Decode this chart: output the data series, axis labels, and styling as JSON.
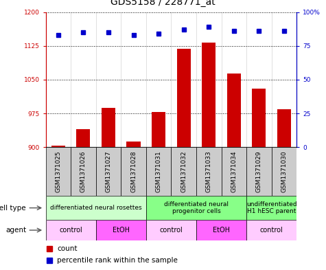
{
  "title": "GDS5158 / 228771_at",
  "samples": [
    "GSM1371025",
    "GSM1371026",
    "GSM1371027",
    "GSM1371028",
    "GSM1371031",
    "GSM1371032",
    "GSM1371033",
    "GSM1371034",
    "GSM1371029",
    "GSM1371030"
  ],
  "counts": [
    903,
    940,
    988,
    912,
    978,
    1118,
    1133,
    1063,
    1030,
    985
  ],
  "percentiles": [
    83,
    85,
    85,
    83,
    84,
    87,
    89,
    86,
    86,
    86
  ],
  "ylim_left": [
    900,
    1200
  ],
  "ylim_right": [
    0,
    100
  ],
  "yticks_left": [
    900,
    975,
    1050,
    1125,
    1200
  ],
  "yticks_right": [
    0,
    25,
    50,
    75,
    100
  ],
  "bar_color": "#cc0000",
  "dot_color": "#0000cc",
  "cell_type_groups": [
    {
      "label": "differentiated neural rosettes",
      "start": 0,
      "end": 4,
      "color": "#ccffcc"
    },
    {
      "label": "differentiated neural\nprogenitor cells",
      "start": 4,
      "end": 8,
      "color": "#88ff88"
    },
    {
      "label": "undifferentiated\nH1 hESC parent",
      "start": 8,
      "end": 10,
      "color": "#88ff88"
    }
  ],
  "agent_groups": [
    {
      "label": "control",
      "start": 0,
      "end": 2,
      "color": "#ffccff"
    },
    {
      "label": "EtOH",
      "start": 2,
      "end": 4,
      "color": "#ff66ff"
    },
    {
      "label": "control",
      "start": 4,
      "end": 6,
      "color": "#ffccff"
    },
    {
      "label": "EtOH",
      "start": 6,
      "end": 8,
      "color": "#ff66ff"
    },
    {
      "label": "control",
      "start": 8,
      "end": 10,
      "color": "#ffccff"
    }
  ],
  "cell_type_label": "cell type",
  "agent_label": "agent",
  "legend_count_label": "count",
  "legend_percentile_label": "percentile rank within the sample",
  "bar_width": 0.55,
  "sample_box_color": "#cccccc",
  "tick_label_fontsize": 6.5,
  "row_label_fontsize": 7.5,
  "cell_agent_fontsize": 7,
  "legend_fontsize": 7.5
}
